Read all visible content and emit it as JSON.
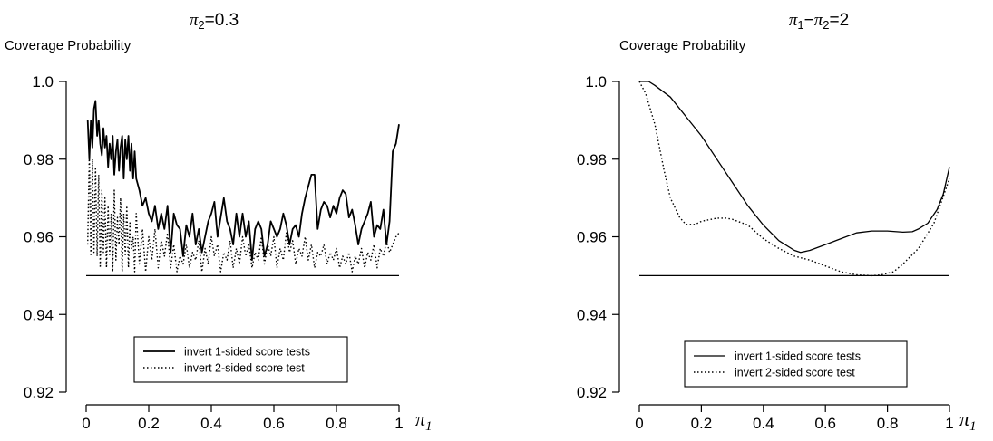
{
  "chart_data": [
    {
      "type": "line",
      "title": "π2=0.3",
      "xlabel": "π1",
      "ylabel": "Coverage Probability",
      "xlim": [
        0,
        1
      ],
      "ylim": [
        0.92,
        1.0
      ],
      "x_ticks": [
        0,
        0.2,
        0.4,
        0.6,
        0.8,
        1
      ],
      "x_tick_labels": [
        "0",
        "0.2",
        "0.4",
        "0.6",
        "0.8",
        "1"
      ],
      "y_ticks": [
        0.92,
        0.94,
        0.96,
        0.98,
        1.0
      ],
      "y_tick_labels": [
        "0.92",
        "0.94",
        "0.96",
        "0.98",
        "1.0"
      ],
      "reference_line": 0.95,
      "grid": false,
      "legend_position": "bottom-center",
      "series": [
        {
          "name": "invert 1-sided score tests",
          "style": "solid",
          "x": [
            0.005,
            0.01,
            0.015,
            0.02,
            0.025,
            0.03,
            0.035,
            0.04,
            0.045,
            0.05,
            0.055,
            0.06,
            0.065,
            0.07,
            0.075,
            0.08,
            0.085,
            0.09,
            0.095,
            0.1,
            0.105,
            0.11,
            0.115,
            0.12,
            0.125,
            0.13,
            0.135,
            0.14,
            0.145,
            0.15,
            0.155,
            0.16,
            0.17,
            0.18,
            0.19,
            0.2,
            0.21,
            0.22,
            0.23,
            0.24,
            0.25,
            0.26,
            0.27,
            0.28,
            0.29,
            0.3,
            0.31,
            0.32,
            0.33,
            0.34,
            0.35,
            0.36,
            0.37,
            0.38,
            0.39,
            0.4,
            0.41,
            0.42,
            0.43,
            0.44,
            0.45,
            0.46,
            0.47,
            0.48,
            0.49,
            0.5,
            0.51,
            0.52,
            0.53,
            0.54,
            0.55,
            0.56,
            0.57,
            0.58,
            0.59,
            0.6,
            0.61,
            0.62,
            0.63,
            0.64,
            0.65,
            0.66,
            0.67,
            0.68,
            0.69,
            0.7,
            0.71,
            0.72,
            0.73,
            0.74,
            0.75,
            0.76,
            0.77,
            0.78,
            0.79,
            0.8,
            0.81,
            0.82,
            0.83,
            0.84,
            0.85,
            0.86,
            0.87,
            0.88,
            0.89,
            0.9,
            0.91,
            0.92,
            0.93,
            0.94,
            0.95,
            0.96,
            0.97,
            0.98,
            0.99,
            1.0
          ],
          "y": [
            0.99,
            0.98,
            0.99,
            0.983,
            0.993,
            0.995,
            0.986,
            0.99,
            0.984,
            0.981,
            0.988,
            0.983,
            0.986,
            0.978,
            0.984,
            0.98,
            0.986,
            0.976,
            0.982,
            0.985,
            0.977,
            0.983,
            0.986,
            0.975,
            0.985,
            0.98,
            0.986,
            0.977,
            0.984,
            0.975,
            0.982,
            0.975,
            0.972,
            0.968,
            0.97,
            0.966,
            0.964,
            0.968,
            0.962,
            0.966,
            0.962,
            0.968,
            0.956,
            0.966,
            0.963,
            0.962,
            0.955,
            0.963,
            0.96,
            0.966,
            0.958,
            0.962,
            0.956,
            0.96,
            0.964,
            0.966,
            0.969,
            0.96,
            0.965,
            0.97,
            0.964,
            0.962,
            0.958,
            0.966,
            0.96,
            0.966,
            0.96,
            0.964,
            0.954,
            0.962,
            0.964,
            0.962,
            0.955,
            0.958,
            0.964,
            0.962,
            0.96,
            0.962,
            0.966,
            0.963,
            0.958,
            0.962,
            0.963,
            0.96,
            0.966,
            0.97,
            0.973,
            0.976,
            0.976,
            0.962,
            0.967,
            0.969,
            0.968,
            0.965,
            0.968,
            0.966,
            0.97,
            0.972,
            0.971,
            0.965,
            0.967,
            0.963,
            0.958,
            0.962,
            0.964,
            0.966,
            0.969,
            0.96,
            0.963,
            0.962,
            0.967,
            0.958,
            0.964,
            0.982,
            0.984,
            0.989
          ]
        },
        {
          "name": "invert 2-sided score test",
          "style": "dotted",
          "x": [
            0.005,
            0.01,
            0.015,
            0.02,
            0.025,
            0.03,
            0.035,
            0.04,
            0.045,
            0.05,
            0.055,
            0.06,
            0.065,
            0.07,
            0.075,
            0.08,
            0.085,
            0.09,
            0.095,
            0.1,
            0.105,
            0.11,
            0.115,
            0.12,
            0.125,
            0.13,
            0.135,
            0.14,
            0.145,
            0.15,
            0.155,
            0.16,
            0.17,
            0.18,
            0.19,
            0.2,
            0.21,
            0.22,
            0.23,
            0.24,
            0.25,
            0.26,
            0.27,
            0.28,
            0.29,
            0.3,
            0.31,
            0.32,
            0.33,
            0.34,
            0.35,
            0.36,
            0.37,
            0.38,
            0.39,
            0.4,
            0.41,
            0.42,
            0.43,
            0.44,
            0.45,
            0.46,
            0.47,
            0.48,
            0.49,
            0.5,
            0.51,
            0.52,
            0.53,
            0.54,
            0.55,
            0.56,
            0.57,
            0.58,
            0.59,
            0.6,
            0.61,
            0.62,
            0.63,
            0.64,
            0.65,
            0.66,
            0.67,
            0.68,
            0.69,
            0.7,
            0.71,
            0.72,
            0.73,
            0.74,
            0.75,
            0.76,
            0.77,
            0.78,
            0.79,
            0.8,
            0.81,
            0.82,
            0.83,
            0.84,
            0.85,
            0.86,
            0.87,
            0.88,
            0.89,
            0.9,
            0.91,
            0.92,
            0.93,
            0.94,
            0.95,
            0.96,
            0.97,
            0.98,
            0.99,
            1.0
          ],
          "y": [
            0.958,
            0.982,
            0.955,
            0.98,
            0.956,
            0.978,
            0.955,
            0.976,
            0.952,
            0.972,
            0.956,
            0.97,
            0.952,
            0.968,
            0.955,
            0.966,
            0.951,
            0.972,
            0.954,
            0.965,
            0.958,
            0.97,
            0.951,
            0.966,
            0.955,
            0.968,
            0.952,
            0.964,
            0.957,
            0.96,
            0.951,
            0.966,
            0.953,
            0.962,
            0.951,
            0.96,
            0.954,
            0.962,
            0.952,
            0.959,
            0.955,
            0.961,
            0.952,
            0.958,
            0.951,
            0.955,
            0.953,
            0.958,
            0.952,
            0.956,
            0.954,
            0.959,
            0.951,
            0.957,
            0.953,
            0.96,
            0.955,
            0.958,
            0.951,
            0.956,
            0.954,
            0.959,
            0.952,
            0.957,
            0.953,
            0.96,
            0.955,
            0.958,
            0.952,
            0.956,
            0.954,
            0.96,
            0.953,
            0.958,
            0.955,
            0.96,
            0.952,
            0.957,
            0.954,
            0.961,
            0.956,
            0.959,
            0.953,
            0.957,
            0.955,
            0.96,
            0.954,
            0.958,
            0.952,
            0.956,
            0.955,
            0.958,
            0.953,
            0.956,
            0.954,
            0.957,
            0.952,
            0.955,
            0.953,
            0.956,
            0.951,
            0.955,
            0.953,
            0.957,
            0.952,
            0.956,
            0.954,
            0.958,
            0.952,
            0.957,
            0.955,
            0.959,
            0.956,
            0.958,
            0.96,
            0.961
          ]
        }
      ]
    },
    {
      "type": "line",
      "title": "π1−π2=2",
      "xlabel": "π1",
      "ylabel": "Coverage Probability",
      "xlim": [
        0,
        1
      ],
      "ylim": [
        0.92,
        1.0
      ],
      "x_ticks": [
        0,
        0.2,
        0.4,
        0.6,
        0.8,
        1
      ],
      "x_tick_labels": [
        "0",
        "0.2",
        "0.4",
        "0.6",
        "0.8",
        "1"
      ],
      "y_ticks": [
        0.92,
        0.94,
        0.96,
        0.98,
        1.0
      ],
      "y_tick_labels": [
        "0.92",
        "0.94",
        "0.96",
        "0.98",
        "1.0"
      ],
      "reference_line": 0.95,
      "grid": false,
      "legend_position": "bottom-center",
      "series": [
        {
          "name": "invert 1-sided score tests",
          "style": "solid",
          "x": [
            0.0,
            0.03,
            0.05,
            0.1,
            0.15,
            0.2,
            0.25,
            0.3,
            0.35,
            0.4,
            0.45,
            0.5,
            0.52,
            0.55,
            0.6,
            0.65,
            0.7,
            0.75,
            0.8,
            0.85,
            0.88,
            0.9,
            0.93,
            0.96,
            0.98,
            1.0
          ],
          "y": [
            1.0,
            1.0,
            0.999,
            0.996,
            0.991,
            0.986,
            0.98,
            0.974,
            0.968,
            0.963,
            0.959,
            0.9565,
            0.956,
            0.9565,
            0.958,
            0.9595,
            0.961,
            0.9615,
            0.9615,
            0.9612,
            0.9613,
            0.962,
            0.9635,
            0.967,
            0.971,
            0.978
          ]
        },
        {
          "name": "invert 2-sided score test",
          "style": "dotted",
          "x": [
            0.0,
            0.02,
            0.05,
            0.08,
            0.1,
            0.13,
            0.15,
            0.18,
            0.2,
            0.25,
            0.28,
            0.3,
            0.35,
            0.4,
            0.45,
            0.5,
            0.55,
            0.6,
            0.65,
            0.7,
            0.75,
            0.78,
            0.82,
            0.85,
            0.9,
            0.95,
            1.0
          ],
          "y": [
            1.0,
            0.997,
            0.989,
            0.977,
            0.97,
            0.965,
            0.9632,
            0.9632,
            0.964,
            0.9648,
            0.9648,
            0.9645,
            0.963,
            0.9595,
            0.957,
            0.955,
            0.954,
            0.9525,
            0.951,
            0.9502,
            0.95,
            0.9502,
            0.951,
            0.953,
            0.957,
            0.9635,
            0.975
          ]
        }
      ]
    }
  ]
}
